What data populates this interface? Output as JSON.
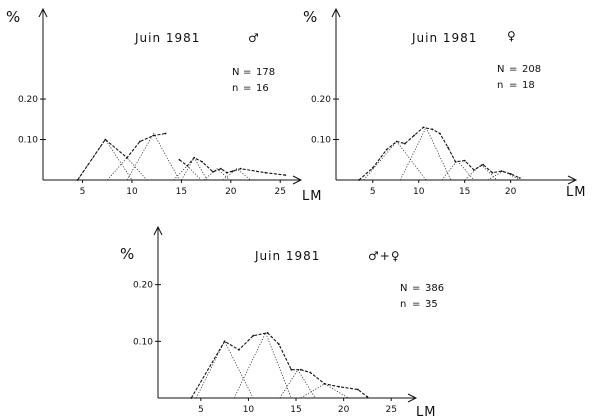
{
  "chart_data": [
    {
      "type": "line",
      "title": "Juin 1981",
      "sex_symbol": "♂",
      "ylabel": "%",
      "xlabel": "LM",
      "stats": [
        {
          "label": "N",
          "value": "178"
        },
        {
          "label": "n",
          "value": "16"
        }
      ],
      "xticks": [
        "5",
        "10",
        "15",
        "20",
        "25"
      ],
      "yticks": [
        "0.10",
        "0.20"
      ],
      "xlim": [
        1,
        27
      ],
      "ylim": [
        0,
        0.42
      ],
      "series": [
        {
          "x": [
            4.5,
            7.3,
            9.5,
            10.8,
            12.2,
            13.4
          ],
          "values": [
            0.0,
            0.1,
            0.055,
            0.095,
            0.11,
            0.115
          ]
        },
        {
          "x": [
            14.8,
            15.6,
            16.3,
            17.1,
            18.2,
            19.0,
            19.6,
            20.2,
            21.0,
            23.5,
            25.5
          ],
          "values": [
            0.05,
            0.035,
            0.055,
            0.045,
            0.02,
            0.028,
            0.018,
            0.022,
            0.028,
            0.018,
            0.012
          ]
        }
      ],
      "components": [
        {
          "x": [
            4.5,
            7.3,
            10.0
          ],
          "values": [
            0.0,
            0.1,
            0.0
          ]
        },
        {
          "x": [
            7.5,
            9.5,
            11.5
          ],
          "values": [
            0.0,
            0.055,
            0.0
          ]
        },
        {
          "x": [
            9.5,
            12.2,
            14.8
          ],
          "values": [
            0.0,
            0.115,
            0.0
          ]
        },
        {
          "x": [
            14.2,
            15.6,
            17.0
          ],
          "values": [
            0.0,
            0.035,
            0.0
          ]
        },
        {
          "x": [
            15.0,
            16.3,
            17.6
          ],
          "values": [
            0.0,
            0.055,
            0.0
          ]
        },
        {
          "x": [
            17.3,
            18.6,
            19.9
          ],
          "values": [
            0.0,
            0.028,
            0.0
          ]
        },
        {
          "x": [
            19.2,
            20.6,
            22.0
          ],
          "values": [
            0.0,
            0.028,
            0.0
          ]
        }
      ]
    },
    {
      "type": "line",
      "title": "Juin 1981",
      "sex_symbol": "♀",
      "ylabel": "%",
      "xlabel": "LM",
      "stats": [
        {
          "label": "N",
          "value": "208"
        },
        {
          "label": "n",
          "value": "18"
        }
      ],
      "xticks": [
        "5",
        "10",
        "15",
        "20"
      ],
      "yticks": [
        "0.10",
        "0.20"
      ],
      "xlim": [
        1,
        27
      ],
      "ylim": [
        0,
        0.42
      ],
      "series": [
        {
          "x": [
            3.5,
            5.0,
            6.5,
            7.6,
            8.5,
            9.5,
            10.5,
            11.5,
            12.3,
            13.2,
            14.0,
            15.0,
            16.0,
            17.0,
            18.0,
            19.0,
            20.0,
            21.0
          ],
          "values": [
            0.0,
            0.03,
            0.075,
            0.095,
            0.09,
            0.11,
            0.13,
            0.125,
            0.115,
            0.08,
            0.045,
            0.048,
            0.025,
            0.038,
            0.018,
            0.022,
            0.015,
            0.005
          ]
        }
      ],
      "components": [
        {
          "x": [
            4.0,
            7.6,
            10.8
          ],
          "values": [
            0.0,
            0.095,
            0.0
          ]
        },
        {
          "x": [
            8.0,
            10.8,
            13.5
          ],
          "values": [
            0.0,
            0.13,
            0.0
          ]
        },
        {
          "x": [
            12.5,
            14.2,
            16.0
          ],
          "values": [
            0.0,
            0.048,
            0.0
          ]
        },
        {
          "x": [
            15.0,
            16.8,
            18.5
          ],
          "values": [
            0.0,
            0.038,
            0.0
          ]
        },
        {
          "x": [
            17.5,
            19.2,
            21.0
          ],
          "values": [
            0.0,
            0.022,
            0.0
          ]
        }
      ]
    },
    {
      "type": "line",
      "title": "Juin 1981",
      "sex_symbol": "♂+♀",
      "ylabel": "%",
      "xlabel": "LM",
      "stats": [
        {
          "label": "N",
          "value": "386"
        },
        {
          "label": "n",
          "value": "35"
        }
      ],
      "xticks": [
        "5",
        "10",
        "15",
        "20",
        "25"
      ],
      "yticks": [
        "0.10",
        "0.20"
      ],
      "xlim": [
        0.5,
        27.5
      ],
      "ylim": [
        0,
        0.3
      ],
      "series": [
        {
          "x": [
            4.0,
            7.5,
            9.0,
            10.5,
            12.0,
            13.2,
            14.5,
            15.5,
            16.5,
            18.0,
            19.5,
            21.5,
            22.5
          ],
          "values": [
            0.0,
            0.1,
            0.085,
            0.11,
            0.115,
            0.095,
            0.05,
            0.05,
            0.045,
            0.025,
            0.02,
            0.015,
            0.002
          ]
        }
      ],
      "components": [
        {
          "x": [
            4.5,
            7.5,
            10.5
          ],
          "values": [
            0.0,
            0.1,
            0.0
          ]
        },
        {
          "x": [
            8.5,
            11.8,
            14.5
          ],
          "values": [
            0.0,
            0.115,
            0.0
          ]
        },
        {
          "x": [
            13.3,
            15.2,
            17.0
          ],
          "values": [
            0.0,
            0.05,
            0.0
          ]
        },
        {
          "x": [
            15.5,
            18.0,
            20.5
          ],
          "values": [
            0.0,
            0.025,
            0.0
          ]
        }
      ]
    }
  ]
}
